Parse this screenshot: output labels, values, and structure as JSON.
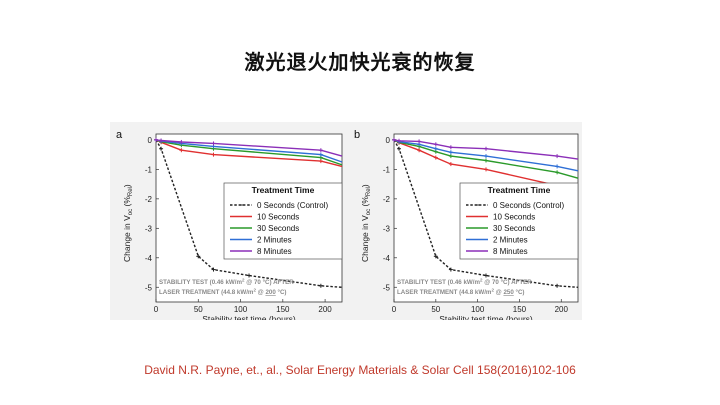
{
  "slide": {
    "title": "激光退火加快光衰的恢复",
    "citation": "David N.R. Payne, et., al., Solar Energy Materials & Solar Cell 158(2016)102-106"
  },
  "colors": {
    "control": "#222222",
    "s10": "#e03030",
    "s30": "#2a9a2a",
    "m2": "#2f6fd6",
    "m8": "#8b2fb8",
    "citation": "#c0392b"
  },
  "chart_data": [
    {
      "type": "line",
      "panel_label": "a",
      "xlabel": "Stability test time (hours)",
      "ylabel": "Change in V",
      "ylabel_sub": "oc",
      "ylabel_tail": "(%",
      "ylabel_rel": "Rel",
      "ylabel_close": ")",
      "xlim": [
        0,
        220
      ],
      "ylim": [
        -5.5,
        0.2
      ],
      "xticks": [
        0,
        50,
        100,
        150,
        200
      ],
      "yticks": [
        0,
        -1,
        -2,
        -3,
        -4,
        -5
      ],
      "legend_title": "Treatment Time",
      "annotation_line1": "STABILITY TEST  (0.46 kW/m",
      "annotation_line1_sup": "2",
      "annotation_line1_tail": " @ 70 °C) AFTER",
      "annotation_line2": "LASER TREATMENT  (44.8 kW/m",
      "annotation_line2_sup": "2",
      "annotation_line2_mid": " @ ",
      "annotation_line2_temp": "200",
      "annotation_line2_tail": " °C)",
      "series": [
        {
          "name": "0 Seconds (Control)",
          "color": "#222222",
          "dashed": true,
          "x": [
            0,
            6,
            50,
            68,
            110,
            195,
            220
          ],
          "y": [
            0,
            -0.3,
            -3.95,
            -4.4,
            -4.6,
            -4.95,
            -5.0
          ]
        },
        {
          "name": "10 Seconds",
          "color": "#e03030",
          "dashed": false,
          "x": [
            0,
            6,
            30,
            68,
            195,
            220
          ],
          "y": [
            0,
            -0.08,
            -0.35,
            -0.5,
            -0.72,
            -0.9
          ]
        },
        {
          "name": "30 Seconds",
          "color": "#2a9a2a",
          "dashed": false,
          "x": [
            0,
            6,
            30,
            68,
            195,
            220
          ],
          "y": [
            0,
            -0.06,
            -0.18,
            -0.3,
            -0.6,
            -0.85
          ]
        },
        {
          "name": "2 Minutes",
          "color": "#2f6fd6",
          "dashed": false,
          "x": [
            0,
            6,
            30,
            68,
            195,
            220
          ],
          "y": [
            0,
            -0.04,
            -0.12,
            -0.22,
            -0.5,
            -0.75
          ]
        },
        {
          "name": "8 Minutes",
          "color": "#8b2fb8",
          "dashed": false,
          "x": [
            0,
            6,
            30,
            68,
            195,
            220
          ],
          "y": [
            0,
            -0.02,
            -0.07,
            -0.12,
            -0.35,
            -0.55
          ]
        }
      ]
    },
    {
      "type": "line",
      "panel_label": "b",
      "xlabel": "Stability test time (hours)",
      "ylabel": "Change in V",
      "ylabel_sub": "oc",
      "ylabel_tail": "(%",
      "ylabel_rel": "Rel",
      "ylabel_close": ")",
      "xlim": [
        0,
        220
      ],
      "ylim": [
        -5.5,
        0.2
      ],
      "xticks": [
        0,
        50,
        100,
        150,
        200
      ],
      "yticks": [
        0,
        -1,
        -2,
        -3,
        -4,
        -5
      ],
      "legend_title": "Treatment Time",
      "annotation_line1": "STABILITY TEST  (0.46 kW/m",
      "annotation_line1_sup": "2",
      "annotation_line1_tail": " @ 70 °C) AFTER",
      "annotation_line2": "LASER TREATMENT  (44.8 kW/m",
      "annotation_line2_sup": "2",
      "annotation_line2_mid": " @ ",
      "annotation_line2_temp": "250",
      "annotation_line2_tail": " °C)",
      "series": [
        {
          "name": "0 Seconds (Control)",
          "color": "#222222",
          "dashed": true,
          "x": [
            0,
            6,
            50,
            68,
            110,
            195,
            220
          ],
          "y": [
            0,
            -0.3,
            -3.95,
            -4.4,
            -4.6,
            -4.95,
            -5.0
          ]
        },
        {
          "name": "10 Seconds",
          "color": "#e03030",
          "dashed": false,
          "x": [
            0,
            6,
            30,
            50,
            68,
            110,
            195,
            220
          ],
          "y": [
            0,
            -0.1,
            -0.35,
            -0.6,
            -0.82,
            -1.0,
            -1.55,
            -1.75
          ]
        },
        {
          "name": "30 Seconds",
          "color": "#2a9a2a",
          "dashed": false,
          "x": [
            0,
            6,
            30,
            50,
            68,
            110,
            195,
            220
          ],
          "y": [
            0,
            -0.08,
            -0.22,
            -0.4,
            -0.55,
            -0.7,
            -1.1,
            -1.3
          ]
        },
        {
          "name": "2 Minutes",
          "color": "#2f6fd6",
          "dashed": false,
          "x": [
            0,
            6,
            30,
            50,
            68,
            110,
            195,
            220
          ],
          "y": [
            0,
            -0.06,
            -0.15,
            -0.3,
            -0.42,
            -0.55,
            -0.9,
            -1.05
          ]
        },
        {
          "name": "8 Minutes",
          "color": "#8b2fb8",
          "dashed": false,
          "x": [
            0,
            6,
            30,
            50,
            68,
            110,
            195,
            220
          ],
          "y": [
            0,
            -0.03,
            -0.05,
            -0.15,
            -0.25,
            -0.3,
            -0.55,
            -0.65
          ]
        }
      ]
    }
  ]
}
